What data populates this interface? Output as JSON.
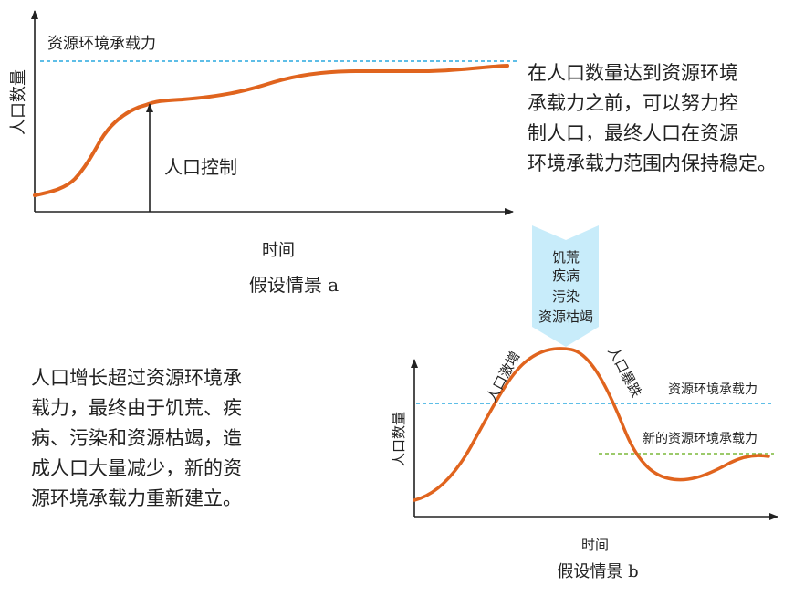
{
  "scenario_a": {
    "carrying_capacity_label": "资源环境承载力",
    "y_axis_label": "人口数量",
    "x_axis_label": "时间",
    "control_label": "人口控制",
    "caption": "假设情景 a",
    "description_lines": [
      "在人口数量达到资源环境",
      "承载力之前，可以努力控",
      "制人口，最终人口在资源",
      "环境承载力范围内保持稳定。"
    ]
  },
  "transition_arrow": {
    "causes": [
      "饥荒",
      "疾病",
      "污染",
      "资源枯竭"
    ],
    "color": "#c8ecfa"
  },
  "scenario_b": {
    "rise_label": "人口激增",
    "fall_label": "人口暴跌",
    "carrying_capacity_label": "资源环境承载力",
    "new_capacity_label": "新的资源环境承载力",
    "y_axis_label": "人口数量",
    "x_axis_label": "时间",
    "caption": "假设情景 b",
    "description_lines": [
      "人口增长超过资源环境承",
      "载力，最终由于饥荒、疾",
      "病、污染和资源枯竭，造",
      "成人口大量减少，新的资",
      "源环境承载力重新建立。"
    ]
  },
  "colors": {
    "curve": "#e0641e",
    "capacity_line": "#29a8df",
    "new_capacity_line": "#7cb83a",
    "axis": "#222222"
  }
}
